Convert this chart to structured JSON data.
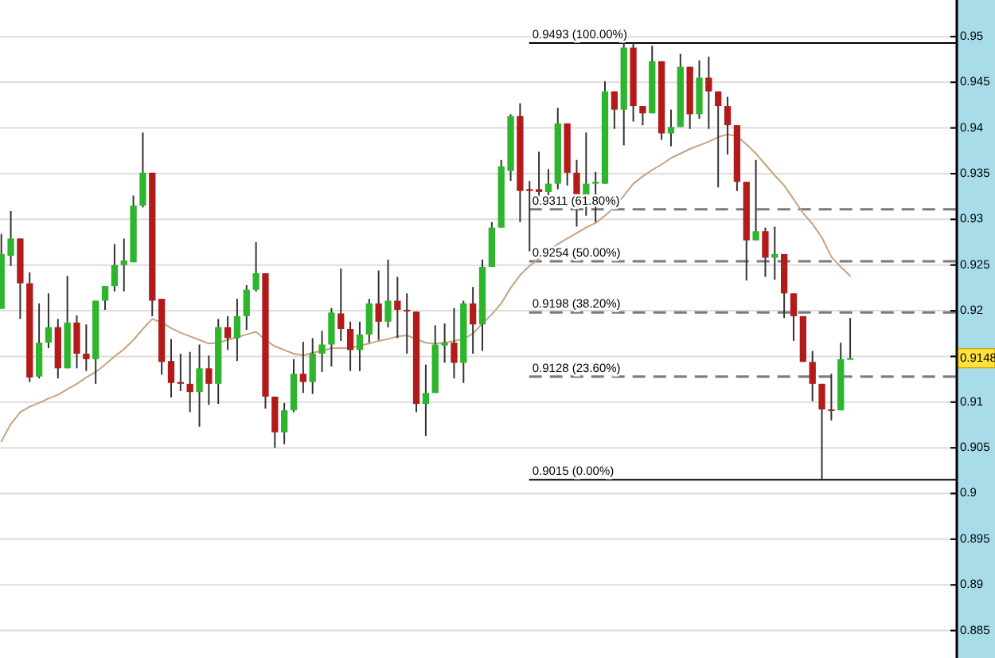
{
  "chart_data": {
    "type": "candlestick",
    "categories": [
      null,
      null,
      null,
      null,
      null,
      null,
      null,
      null,
      null,
      null,
      null,
      null,
      null,
      null,
      null,
      null,
      null,
      null,
      null,
      null,
      null,
      null,
      null,
      null,
      null,
      null,
      null,
      null,
      null,
      null,
      null,
      null,
      null,
      null,
      null,
      null,
      null,
      null,
      null,
      null,
      null,
      null,
      null,
      null,
      null,
      null,
      null,
      null,
      null,
      null,
      null,
      null,
      null,
      null,
      null,
      null,
      null,
      null,
      null,
      null,
      null,
      null,
      null,
      null,
      null,
      null,
      null,
      null,
      null,
      null,
      null,
      null,
      null,
      null,
      null,
      null,
      null,
      null,
      null,
      null,
      null,
      null,
      null,
      null,
      null,
      null,
      null,
      null,
      null,
      null,
      null
    ],
    "ohlc": [
      [
        0.9202,
        0.9284,
        0.9202,
        0.9262
      ],
      [
        0.926,
        0.9309,
        0.9249,
        0.9279
      ],
      [
        0.9279,
        0.9279,
        0.9191,
        0.923
      ],
      [
        0.923,
        0.9242,
        0.9122,
        0.9127
      ],
      [
        0.9128,
        0.9208,
        0.9126,
        0.9165
      ],
      [
        0.9165,
        0.9219,
        0.9159,
        0.9182
      ],
      [
        0.9182,
        0.9191,
        0.9126,
        0.9137
      ],
      [
        0.9137,
        0.9238,
        0.9137,
        0.9187
      ],
      [
        0.9187,
        0.9195,
        0.9137,
        0.9153
      ],
      [
        0.9153,
        0.9185,
        0.9134,
        0.9147
      ],
      [
        0.9147,
        0.9211,
        0.912,
        0.9211
      ],
      [
        0.9211,
        0.9227,
        0.9201,
        0.9227
      ],
      [
        0.9227,
        0.9273,
        0.9221,
        0.925
      ],
      [
        0.925,
        0.9279,
        0.9221,
        0.9255
      ],
      [
        0.9253,
        0.9326,
        0.9253,
        0.9315
      ],
      [
        0.9315,
        0.9395,
        0.9313,
        0.9351
      ],
      [
        0.9351,
        0.9351,
        0.9194,
        0.9211
      ],
      [
        0.9213,
        0.9213,
        0.913,
        0.9144
      ],
      [
        0.9145,
        0.9169,
        0.9105,
        0.9121
      ],
      [
        0.9122,
        0.9153,
        0.9112,
        0.912
      ],
      [
        0.912,
        0.9155,
        0.9089,
        0.9111
      ],
      [
        0.9111,
        0.9163,
        0.9073,
        0.9137
      ],
      [
        0.9137,
        0.9151,
        0.9097,
        0.912
      ],
      [
        0.912,
        0.9191,
        0.9098,
        0.9182
      ],
      [
        0.9182,
        0.9194,
        0.9157,
        0.917
      ],
      [
        0.917,
        0.9213,
        0.9145,
        0.9194
      ],
      [
        0.9194,
        0.9228,
        0.9179,
        0.9223
      ],
      [
        0.9223,
        0.9275,
        0.9221,
        0.9241
      ],
      [
        0.9241,
        0.9241,
        0.9093,
        0.9106
      ],
      [
        0.9106,
        0.9106,
        0.905,
        0.9067
      ],
      [
        0.9067,
        0.9099,
        0.9054,
        0.9091
      ],
      [
        0.9091,
        0.9147,
        0.9089,
        0.9131
      ],
      [
        0.9131,
        0.9166,
        0.911,
        0.9122
      ],
      [
        0.9122,
        0.917,
        0.9109,
        0.9153
      ],
      [
        0.9153,
        0.9178,
        0.9133,
        0.9163
      ],
      [
        0.9163,
        0.9203,
        0.9139,
        0.9198
      ],
      [
        0.9197,
        0.9246,
        0.9167,
        0.918
      ],
      [
        0.918,
        0.9188,
        0.9134,
        0.9157
      ],
      [
        0.9157,
        0.9188,
        0.9134,
        0.9174
      ],
      [
        0.9174,
        0.9213,
        0.9165,
        0.9208
      ],
      [
        0.9208,
        0.9244,
        0.9168,
        0.9188
      ],
      [
        0.9188,
        0.9256,
        0.9182,
        0.9211
      ],
      [
        0.9211,
        0.9237,
        0.917,
        0.9201
      ],
      [
        0.9201,
        0.9219,
        0.9153,
        0.92
      ],
      [
        0.9199,
        0.9199,
        0.9089,
        0.9098
      ],
      [
        0.9098,
        0.9141,
        0.9063,
        0.911
      ],
      [
        0.911,
        0.9184,
        0.911,
        0.9163
      ],
      [
        0.9162,
        0.9186,
        0.9143,
        0.9165
      ],
      [
        0.9165,
        0.9203,
        0.9126,
        0.9143
      ],
      [
        0.9143,
        0.9211,
        0.9121,
        0.9208
      ],
      [
        0.9208,
        0.9226,
        0.9153,
        0.9185
      ],
      [
        0.9185,
        0.9256,
        0.9156,
        0.9248
      ],
      [
        0.9248,
        0.9297,
        0.9248,
        0.9291
      ],
      [
        0.9291,
        0.9365,
        0.9291,
        0.9358
      ],
      [
        0.9353,
        0.9415,
        0.9342,
        0.9413
      ],
      [
        0.9413,
        0.9427,
        0.9297,
        0.9331
      ],
      [
        0.9333,
        0.9342,
        0.9265,
        0.9331
      ],
      [
        0.9333,
        0.9374,
        0.9324,
        0.933
      ],
      [
        0.933,
        0.9355,
        0.9326,
        0.9339
      ],
      [
        0.9339,
        0.9422,
        0.9333,
        0.9405
      ],
      [
        0.9405,
        0.9405,
        0.9337,
        0.9351
      ],
      [
        0.9351,
        0.9365,
        0.9292,
        0.9327
      ],
      [
        0.9327,
        0.9395,
        0.9304,
        0.9339
      ],
      [
        0.9339,
        0.9352,
        0.9297,
        0.9341
      ],
      [
        0.9339,
        0.9451,
        0.9339,
        0.944
      ],
      [
        0.944,
        0.944,
        0.9399,
        0.942
      ],
      [
        0.942,
        0.9493,
        0.9381,
        0.9488
      ],
      [
        0.9488,
        0.9493,
        0.9407,
        0.9424
      ],
      [
        0.9424,
        0.9424,
        0.9403,
        0.9416
      ],
      [
        0.9416,
        0.949,
        0.9416,
        0.9473
      ],
      [
        0.9473,
        0.9473,
        0.9387,
        0.9394
      ],
      [
        0.9394,
        0.942,
        0.938,
        0.9401
      ],
      [
        0.9401,
        0.9481,
        0.9401,
        0.9467
      ],
      [
        0.9467,
        0.9467,
        0.9399,
        0.9415
      ],
      [
        0.9415,
        0.9474,
        0.941,
        0.9455
      ],
      [
        0.9455,
        0.9478,
        0.9399,
        0.944
      ],
      [
        0.944,
        0.944,
        0.9335,
        0.9424
      ],
      [
        0.9424,
        0.9434,
        0.9371,
        0.9403
      ],
      [
        0.9403,
        0.9403,
        0.9331,
        0.9341
      ],
      [
        0.9341,
        0.9341,
        0.9233,
        0.9277
      ],
      [
        0.9277,
        0.9365,
        0.9277,
        0.9287
      ],
      [
        0.9287,
        0.9291,
        0.9237,
        0.9258
      ],
      [
        0.9258,
        0.9292,
        0.9234,
        0.9262
      ],
      [
        0.9262,
        0.9262,
        0.9192,
        0.9219
      ],
      [
        0.9219,
        0.9219,
        0.9167,
        0.9194
      ],
      [
        0.9194,
        0.9194,
        0.9144,
        0.9144
      ],
      [
        0.9144,
        0.9156,
        0.9101,
        0.912
      ],
      [
        0.912,
        0.912,
        0.9015,
        0.9092
      ],
      [
        0.9092,
        0.9131,
        0.908,
        0.9091
      ],
      [
        0.9091,
        0.9165,
        0.9091,
        0.9147
      ],
      [
        0.9147,
        0.9192,
        0.9147,
        0.9148
      ]
    ],
    "colors": [
      "#2db52d",
      "#2db52d",
      "#b31b1b",
      "#b31b1b",
      "#2db52d",
      "#2db52d",
      "#b31b1b",
      "#2db52d",
      "#b31b1b",
      "#b31b1b",
      "#2db52d",
      "#2db52d",
      "#2db52d",
      "#2db52d",
      "#2db52d",
      "#2db52d",
      "#b31b1b",
      "#b31b1b",
      "#b31b1b",
      "#b31b1b",
      "#b31b1b",
      "#2db52d",
      "#b31b1b",
      "#2db52d",
      "#b31b1b",
      "#2db52d",
      "#2db52d",
      "#2db52d",
      "#b31b1b",
      "#b31b1b",
      "#2db52d",
      "#2db52d",
      "#b31b1b",
      "#2db52d",
      "#2db52d",
      "#2db52d",
      "#b31b1b",
      "#b31b1b",
      "#2db52d",
      "#2db52d",
      "#b31b1b",
      "#2db52d",
      "#b31b1b",
      "#b31b1b",
      "#b31b1b",
      "#2db52d",
      "#2db52d",
      "#2db52d",
      "#b31b1b",
      "#2db52d",
      "#b31b1b",
      "#2db52d",
      "#2db52d",
      "#2db52d",
      "#2db52d",
      "#b31b1b",
      "#b31b1b",
      "#b31b1b",
      "#2db52d",
      "#2db52d",
      "#b31b1b",
      "#b31b1b",
      "#2db52d",
      "#2db52d",
      "#2db52d",
      "#b31b1b",
      "#2db52d",
      "#b31b1b",
      "#b31b1b",
      "#2db52d",
      "#b31b1b",
      "#2db52d",
      "#2db52d",
      "#b31b1b",
      "#2db52d",
      "#b31b1b",
      "#b31b1b",
      "#b31b1b",
      "#b31b1b",
      "#b31b1b",
      "#2db52d",
      "#b31b1b",
      "#2db52d",
      "#b31b1b",
      "#b31b1b",
      "#b31b1b",
      "#b31b1b",
      "#b31b1b",
      "#b31b1b",
      "#2db52d",
      "#2db52d"
    ],
    "series": [
      {
        "type": "line",
        "color": "#c9a27e",
        "values": [
          0.9057,
          0.9076,
          0.9089,
          0.9095,
          0.9099,
          0.9104,
          0.9108,
          0.9114,
          0.912,
          0.9127,
          0.9133,
          0.9141,
          0.915,
          0.9158,
          0.9168,
          0.918,
          0.9191,
          0.9187,
          0.9181,
          0.9176,
          0.9172,
          0.9168,
          0.9164,
          0.9165,
          0.9168,
          0.9171,
          0.9174,
          0.9177,
          0.9168,
          0.9161,
          0.9157,
          0.9153,
          0.9151,
          0.9154,
          0.9156,
          0.9159,
          0.9159,
          0.9159,
          0.9162,
          0.9164,
          0.9167,
          0.9169,
          0.9172,
          0.9173,
          0.9169,
          0.9165,
          0.9164,
          0.9165,
          0.9167,
          0.9169,
          0.9175,
          0.9186,
          0.9196,
          0.9208,
          0.9225,
          0.9239,
          0.9249,
          0.9257,
          0.9265,
          0.9273,
          0.9279,
          0.9285,
          0.9291,
          0.9296,
          0.9304,
          0.9313,
          0.9326,
          0.9339,
          0.9347,
          0.9354,
          0.936,
          0.9367,
          0.9372,
          0.9377,
          0.9381,
          0.9385,
          0.939,
          0.9393,
          0.9391,
          0.9382,
          0.9372,
          0.936,
          0.9348,
          0.9337,
          0.9322,
          0.9307,
          0.9295,
          0.928,
          0.9259,
          0.9248,
          0.9238
        ]
      }
    ],
    "ylim": [
      0.882,
      0.954
    ],
    "yticks": [
      0.885,
      0.89,
      0.895,
      0.9,
      0.905,
      0.91,
      {
        "value": 0.915,
        "label": null
      },
      0.92,
      0.925,
      0.93,
      0.935,
      0.94,
      0.945,
      0.95
    ],
    "tick_labels": "y",
    "grid": "y",
    "ref_lines": [
      {
        "axis": "y",
        "value": 0.9493,
        "label": "0.9493 (100.00%)",
        "color": "#000000",
        "line_style": "solid"
      },
      {
        "axis": "y",
        "value": 0.9311,
        "label": "0.9311 (61.80%)",
        "color": "#7a7a7a",
        "line_style": "dashed"
      },
      {
        "axis": "y",
        "value": 0.9254,
        "label": "0.9254 (50.00%)",
        "color": "#7a7a7a",
        "line_style": "dashed"
      },
      {
        "axis": "y",
        "value": 0.9198,
        "label": "0.9198 (38.20%)",
        "color": "#7a7a7a",
        "line_style": "dashed"
      },
      {
        "axis": "y",
        "value": 0.9128,
        "label": "0.9128 (23.60%)",
        "color": "#7a7a7a",
        "line_style": "dashed"
      },
      {
        "axis": "y",
        "value": 0.9015,
        "label": "0.9015 (0.00%)",
        "color": "#000000",
        "line_style": "solid"
      }
    ],
    "annotations": [
      "0.9148"
    ]
  }
}
